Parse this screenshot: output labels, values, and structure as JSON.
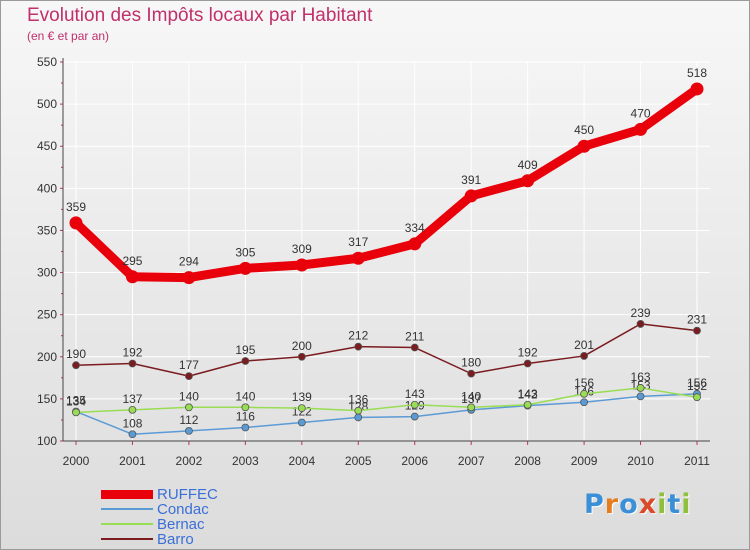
{
  "title": "Evolution des Impôts locaux par Habitant",
  "subtitle": "(en € et par an)",
  "colors": {
    "title": "#c0306a",
    "axis": "#444444",
    "tick": "#c0306a",
    "grid": "#ffffff"
  },
  "logo": {
    "letters": [
      "P",
      "r",
      "o",
      "x",
      "i",
      "t",
      "i"
    ],
    "colors": [
      "#3a8fd6",
      "#e57c1e",
      "#3a8fd6",
      "#d94a2a",
      "#8fc03c",
      "#3a8fd6",
      "#8fc03c"
    ]
  },
  "chart_data": {
    "type": "line",
    "title": "Evolution des Impôts locaux par Habitant",
    "subtitle": "(en € et par an)",
    "xlabel": "",
    "ylabel": "",
    "categories": [
      "2000",
      "2001",
      "2002",
      "2003",
      "2004",
      "2005",
      "2006",
      "2007",
      "2008",
      "2009",
      "2010",
      "2011"
    ],
    "ylim": [
      100,
      550
    ],
    "yticks": [
      100,
      150,
      200,
      250,
      300,
      350,
      400,
      450,
      500,
      550
    ],
    "grid": true,
    "legend_position": "bottom-left",
    "series": [
      {
        "name": "RUFFEC",
        "color": "#e8000b",
        "emphasis": true,
        "values": [
          359,
          295,
          294,
          305,
          309,
          317,
          334,
          391,
          409,
          450,
          470,
          518
        ],
        "labels": [
          "359",
          "295",
          "294",
          "305",
          "309",
          "317",
          "334",
          "391",
          "409",
          "450",
          "470",
          "518"
        ]
      },
      {
        "name": "Condac",
        "color": "#5b9bd5",
        "emphasis": false,
        "values": [
          135,
          108,
          112,
          116,
          122,
          128,
          129,
          137,
          142,
          146,
          153,
          156
        ],
        "labels": [
          "135",
          "108",
          "112",
          "116",
          "122",
          "128",
          "129",
          "137",
          "142",
          "146",
          "153",
          "156"
        ]
      },
      {
        "name": "Bernac",
        "color": "#99dd55",
        "emphasis": false,
        "values": [
          134,
          137,
          140,
          140,
          139,
          136,
          143,
          140,
          143,
          156,
          163,
          152
        ],
        "labels": [
          "134",
          "137",
          "140",
          "140",
          "139",
          "136",
          "143",
          "140",
          "143",
          "156",
          "163",
          "152"
        ]
      },
      {
        "name": "Barro",
        "color": "#7a1c20",
        "emphasis": false,
        "values": [
          190,
          192,
          177,
          195,
          200,
          212,
          211,
          180,
          192,
          201,
          239,
          231
        ],
        "labels": [
          "190",
          "192",
          "177",
          "195",
          "200",
          "212",
          "211",
          "180",
          "192",
          "201",
          "239",
          "231"
        ]
      }
    ]
  }
}
